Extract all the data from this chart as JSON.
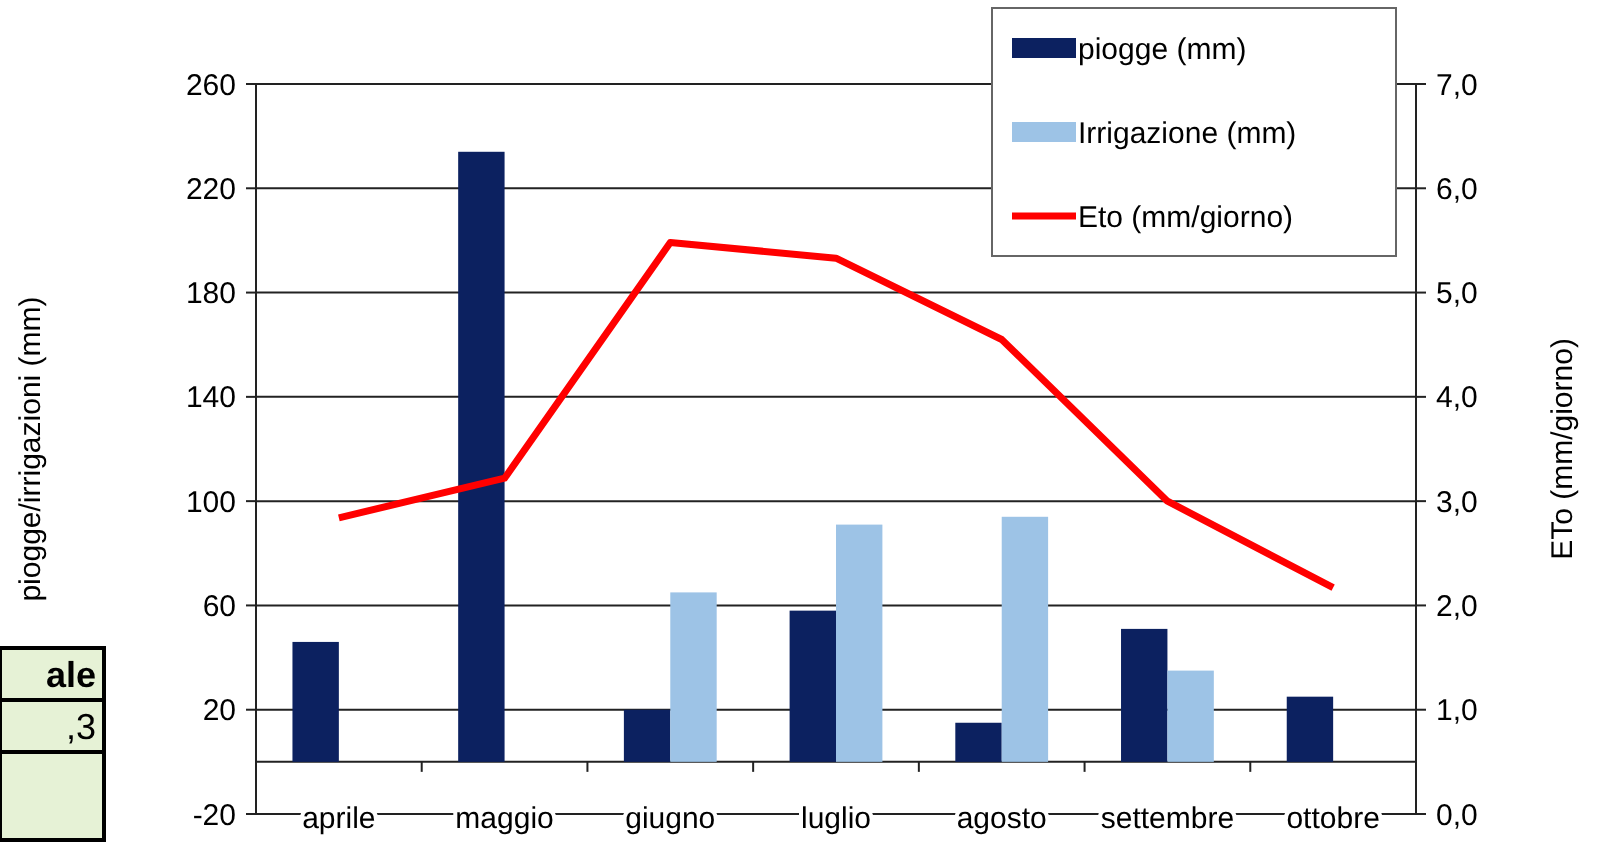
{
  "chart_data": {
    "type": "bar",
    "categories": [
      "aprile",
      "maggio",
      "giugno",
      "luglio",
      "agosto",
      "settembre",
      "ottobre"
    ],
    "series": [
      {
        "name": "piogge (mm)",
        "color": "#0c2160",
        "values": [
          46,
          234,
          20,
          58,
          15,
          51,
          25
        ]
      },
      {
        "name": "Irrigazione (mm)",
        "color": "#9dc3e6",
        "values": [
          null,
          null,
          65,
          91,
          94,
          35,
          null
        ]
      },
      {
        "name": "Eto (mm/giorno)",
        "type": "line",
        "axis": "y2",
        "color": "#ff0000",
        "values": [
          2.84,
          3.22,
          5.48,
          5.33,
          4.55,
          3.0,
          2.17
        ]
      }
    ],
    "ylabel": "piogge/irrigazioni (mm)",
    "y2label": "ETo (mm/giorno)",
    "ylim": [
      -20,
      260
    ],
    "yticks": [
      -20,
      20,
      60,
      100,
      140,
      180,
      220,
      260
    ],
    "y2lim": [
      0,
      7
    ],
    "y2ticks": [
      {
        "value": 0,
        "label": "0,0"
      },
      {
        "value": 1,
        "label": "1,0"
      },
      {
        "value": 2,
        "label": "2,0"
      },
      {
        "value": 3,
        "label": "3,0"
      },
      {
        "value": 4,
        "label": "4,0"
      },
      {
        "value": 5,
        "label": "5,0"
      },
      {
        "value": 6,
        "label": "6,0"
      },
      {
        "value": 7,
        "label": "7,0"
      }
    ],
    "grid": "y",
    "legend": "top right",
    "marker": "none",
    "line_style": "solid",
    "annotations": [
      "ale",
      ",3"
    ]
  }
}
